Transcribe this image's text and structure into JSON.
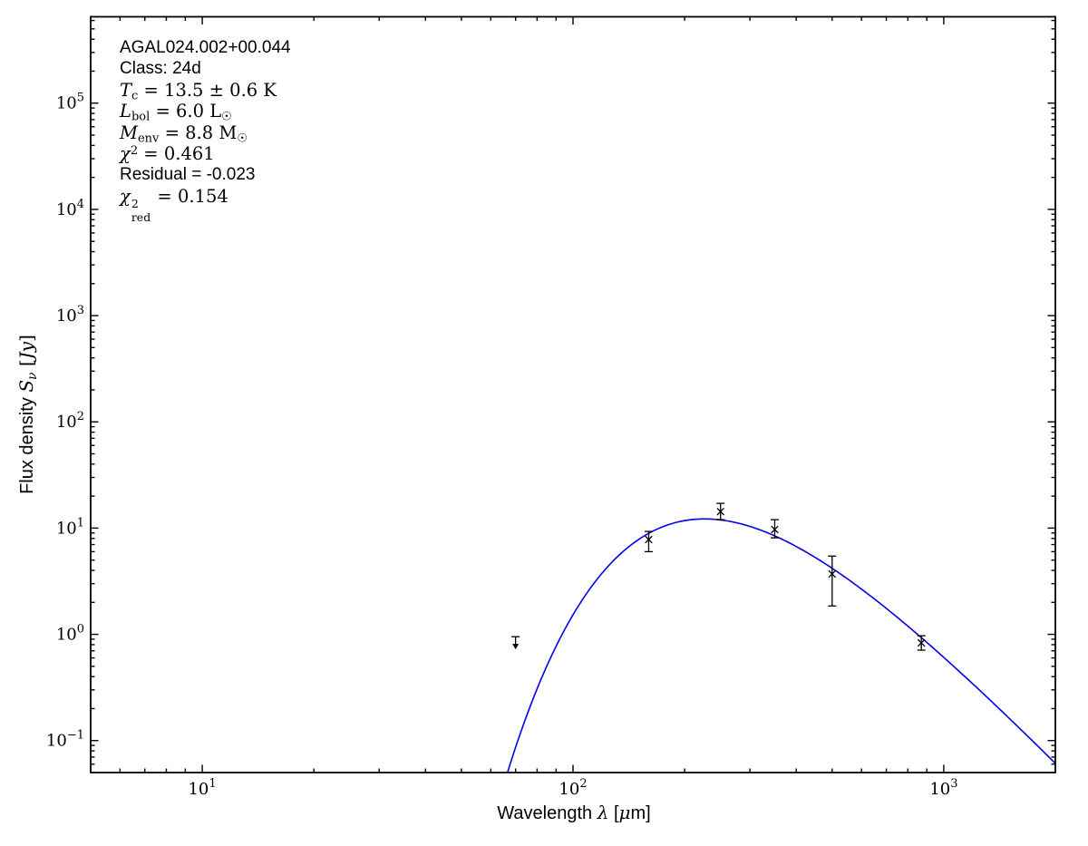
{
  "annotation": {
    "source": "AGAL024.002+00.044",
    "class_line": "Class: 24d",
    "tc_sym": "T",
    "tc_sub": "c",
    "tc_val": " = 13.5 ± 0.6 K",
    "lbol_sym": "L",
    "lbol_sub": "bol",
    "lbol_val": " = 6.0 ",
    "lbol_unit": "L",
    "lbol_unit_sub": "☉",
    "menv_sym": "M",
    "menv_sub": "env",
    "menv_val": " = 8.8 ",
    "menv_unit": "M",
    "menv_unit_sub": "☉",
    "chi2_sym": "χ",
    "chi2_sup": "2",
    "chi2_val": " = 0.461",
    "residual": "Residual = -0.023",
    "chired_sym": "χ",
    "chired_sup": "2",
    "chired_sub": "red",
    "chired_val": " = 0.154"
  },
  "axes": {
    "xlabel_text": "Wavelength ",
    "xlabel_sym": "λ",
    "xlabel_open": " [",
    "xlabel_mu": "μ",
    "xlabel_close": "m]",
    "ylabel_text": "Flux density ",
    "ylabel_sym": "S",
    "ylabel_sub": "ν",
    "ylabel_open": " [",
    "ylabel_unit": "Jy",
    "ylabel_close": "]"
  },
  "chart_data": {
    "type": "line+scatter",
    "title": "",
    "xlabel": "Wavelength λ [μm]",
    "ylabel": "Flux density S_ν [Jy]",
    "x_scale": "log",
    "y_scale": "log",
    "xlim": [
      5,
      2000
    ],
    "ylim": [
      0.05,
      650000
    ],
    "grid": false,
    "legend": "none",
    "background": "#ffffff",
    "point_color": "#000000",
    "x_ticks": [
      {
        "value": 10,
        "base": "10",
        "exp": "1",
        "label": "10^1"
      },
      {
        "value": 100,
        "base": "10",
        "exp": "2",
        "label": "10^2"
      },
      {
        "value": 1000,
        "base": "10",
        "exp": "3",
        "label": "10^3"
      }
    ],
    "y_ticks": [
      {
        "value": 0.1,
        "base": "10",
        "exp": "−1",
        "label": "10^-1"
      },
      {
        "value": 1,
        "base": "10",
        "exp": "0",
        "label": "10^0"
      },
      {
        "value": 10,
        "base": "10",
        "exp": "1",
        "label": "10^1"
      },
      {
        "value": 100,
        "base": "10",
        "exp": "2",
        "label": "10^2"
      },
      {
        "value": 1000,
        "base": "10",
        "exp": "3",
        "label": "10^3"
      },
      {
        "value": 10000,
        "base": "10",
        "exp": "4",
        "label": "10^4"
      },
      {
        "value": 100000,
        "base": "10",
        "exp": "5",
        "label": "10^5"
      }
    ],
    "points": [
      {
        "lambda_um": 70,
        "flux_jy": 0.95,
        "upper_limit": true
      },
      {
        "lambda_um": 160,
        "flux_jy": 7.8,
        "err_hi": 1.5,
        "err_lo": 1.8
      },
      {
        "lambda_um": 250,
        "flux_jy": 14.3,
        "err_hi": 2.8,
        "err_lo": 2.3
      },
      {
        "lambda_um": 350,
        "flux_jy": 9.7,
        "err_hi": 2.3,
        "err_lo": 1.6
      },
      {
        "lambda_um": 500,
        "flux_jy": 3.7,
        "err_hi": 1.75,
        "err_lo": 1.85
      },
      {
        "lambda_um": 870,
        "flux_jy": 0.83,
        "err_hi": 0.14,
        "err_lo": 0.12
      }
    ],
    "model_curve": {
      "type": "greybody",
      "T_K": 13.5,
      "beta": 1.75,
      "peak_flux_jy": 12.2,
      "lambda_range_um": [
        55,
        2000
      ],
      "color": "#0000ee"
    }
  }
}
